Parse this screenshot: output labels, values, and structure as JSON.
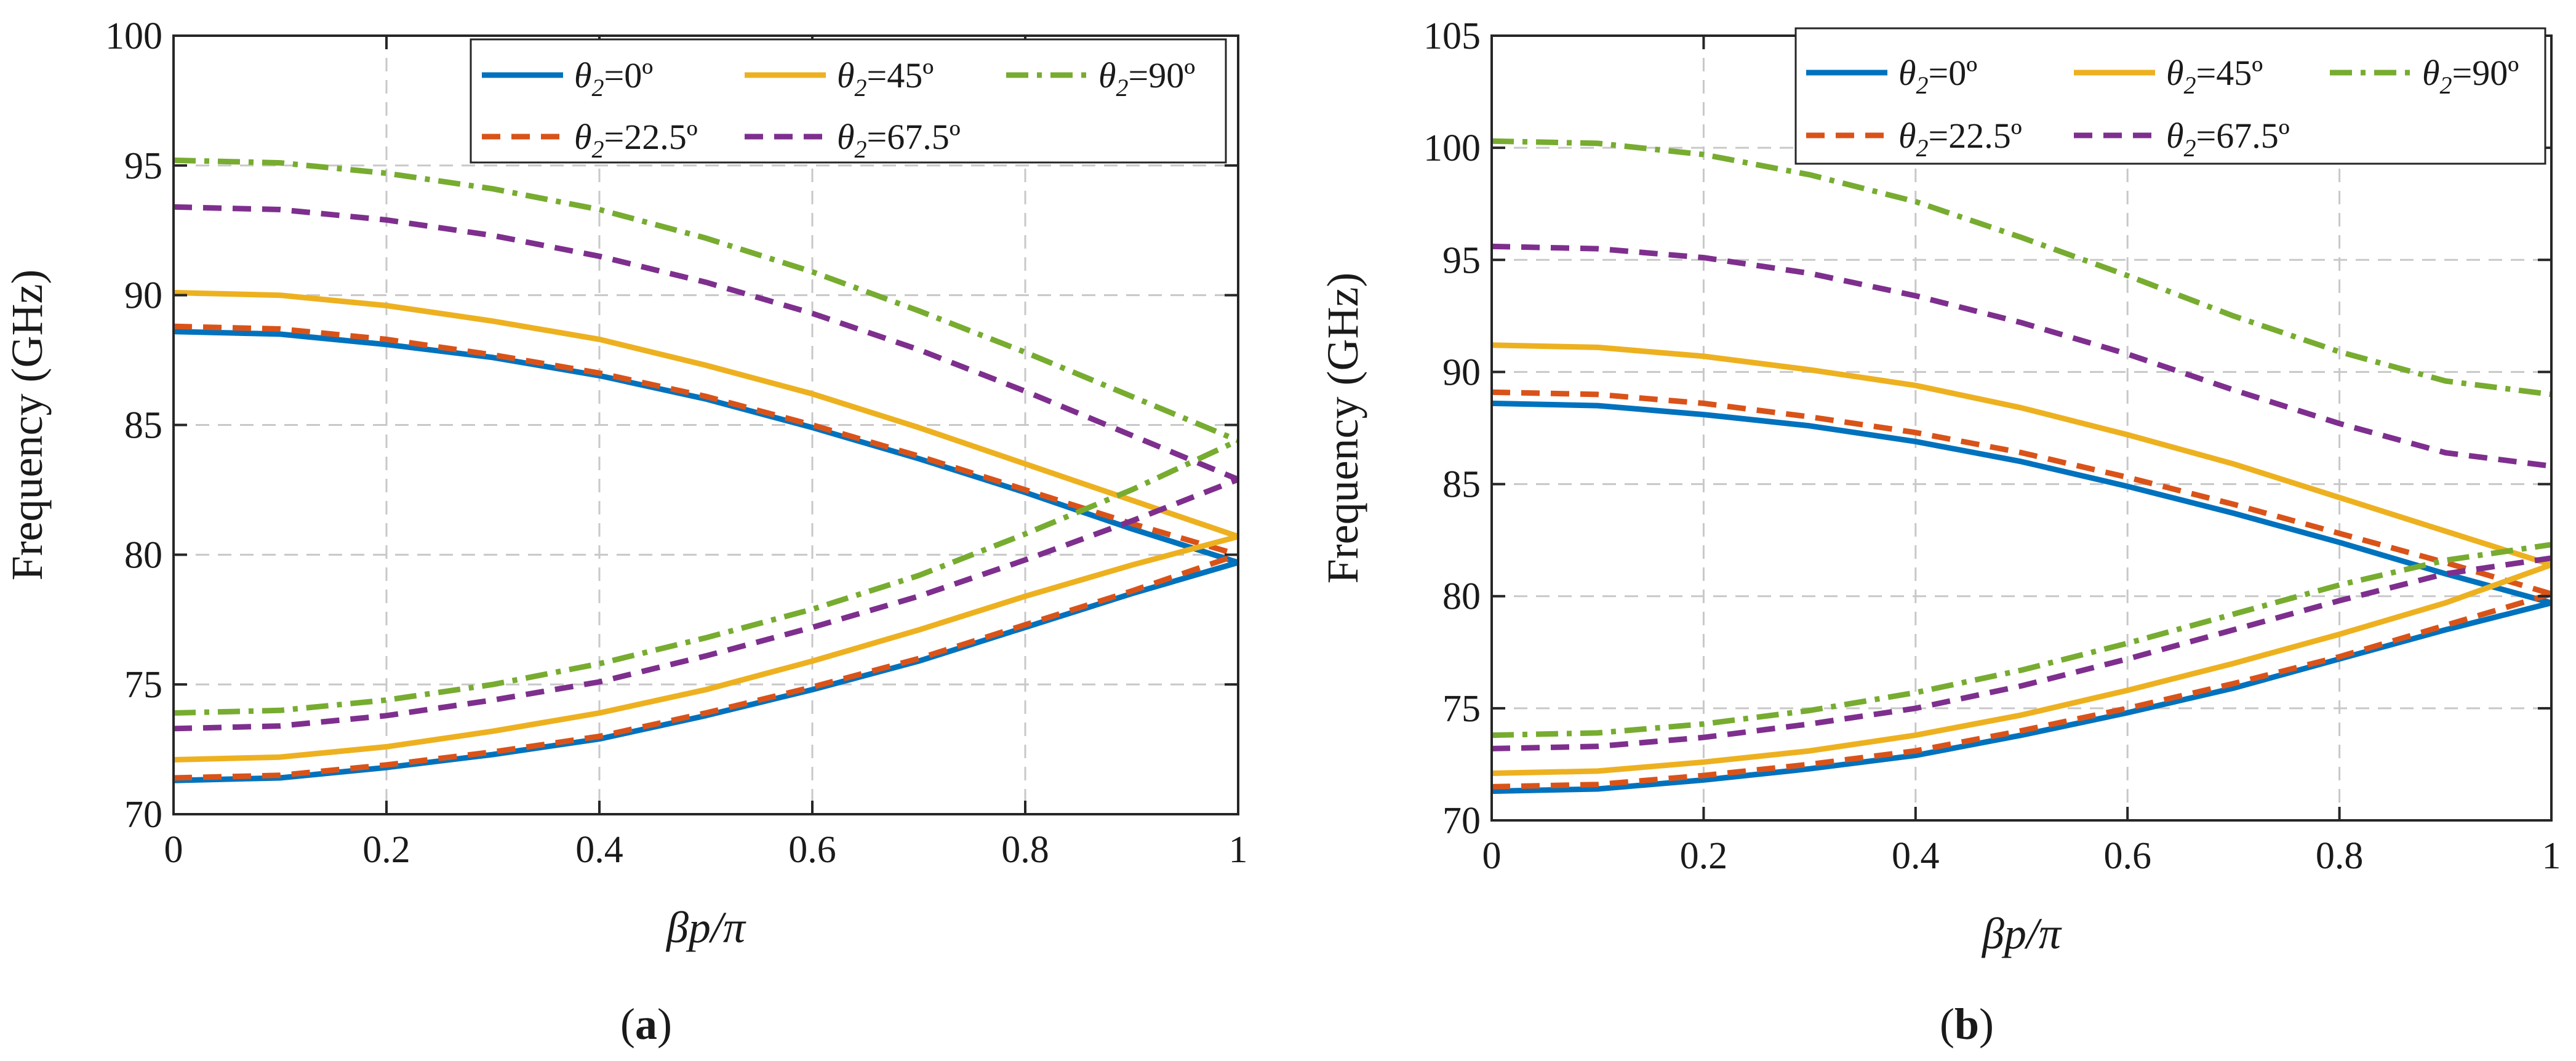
{
  "chart_data": [
    {
      "type": "line",
      "panel": "a",
      "caption": {
        "open": "(",
        "letter": "a",
        "close": ")"
      },
      "xlabel": "βp/π",
      "ylabel": "Frequency (GHz)",
      "xlim": [
        0,
        1
      ],
      "ylim": [
        70,
        100
      ],
      "xticks": [
        0,
        0.2,
        0.4,
        0.6,
        0.8,
        1
      ],
      "xtick_labels": [
        "0",
        "0.2",
        "0.4",
        "0.6",
        "0.8",
        "1"
      ],
      "yticks": [
        70,
        75,
        80,
        85,
        90,
        95,
        100
      ],
      "ytick_labels": [
        "70",
        "75",
        "80",
        "85",
        "90",
        "95",
        "100"
      ],
      "grid": true,
      "legend_position": "top-right",
      "x": [
        0,
        0.1,
        0.2,
        0.3,
        0.4,
        0.5,
        0.6,
        0.7,
        0.8,
        0.9,
        1.0
      ],
      "series": [
        {
          "name": "θ2=0º",
          "symbol": "θ",
          "sub": "2",
          "rest": "=0º",
          "color": "#0072BD",
          "dash": "solid",
          "upper": [
            88.6,
            88.5,
            88.1,
            87.6,
            86.9,
            86.0,
            84.9,
            83.7,
            82.4,
            81.0,
            79.7
          ],
          "lower": [
            71.3,
            71.4,
            71.8,
            72.3,
            72.9,
            73.8,
            74.8,
            75.9,
            77.2,
            78.5,
            79.7
          ]
        },
        {
          "name": "θ2=22.5º",
          "symbol": "θ",
          "sub": "2",
          "rest": "=22.5º",
          "color": "#D95319",
          "dash": "dashed",
          "upper": [
            88.8,
            88.7,
            88.3,
            87.7,
            87.0,
            86.1,
            85.0,
            83.8,
            82.5,
            81.2,
            80.0
          ],
          "lower": [
            71.4,
            71.5,
            71.9,
            72.4,
            73.0,
            73.9,
            74.9,
            76.0,
            77.3,
            78.6,
            80.0
          ]
        },
        {
          "name": "θ2=45º",
          "symbol": "θ",
          "sub": "2",
          "rest": "=45º",
          "color": "#EDB120",
          "dash": "solid",
          "upper": [
            90.1,
            90.0,
            89.6,
            89.0,
            88.3,
            87.3,
            86.2,
            84.9,
            83.5,
            82.1,
            80.7
          ],
          "lower": [
            72.1,
            72.2,
            72.6,
            73.2,
            73.9,
            74.8,
            75.9,
            77.1,
            78.4,
            79.6,
            80.7
          ]
        },
        {
          "name": "θ2=67.5º",
          "symbol": "θ",
          "sub": "2",
          "rest": "=67.5º",
          "color": "#7E2F8E",
          "dash": "dashed",
          "upper": [
            93.4,
            93.3,
            92.9,
            92.3,
            91.5,
            90.5,
            89.3,
            87.9,
            86.3,
            84.6,
            82.9
          ],
          "lower": [
            73.3,
            73.4,
            73.8,
            74.4,
            75.1,
            76.1,
            77.2,
            78.4,
            79.8,
            81.3,
            82.9
          ]
        },
        {
          "name": "θ2=90º",
          "symbol": "θ",
          "sub": "2",
          "rest": "=90º",
          "color": "#77AC30",
          "dash": "dashdot",
          "upper": [
            95.2,
            95.1,
            94.7,
            94.1,
            93.3,
            92.2,
            90.9,
            89.4,
            87.8,
            86.1,
            84.4
          ],
          "lower": [
            73.9,
            74.0,
            74.4,
            75.0,
            75.8,
            76.8,
            77.9,
            79.2,
            80.8,
            82.5,
            84.4
          ]
        }
      ]
    },
    {
      "type": "line",
      "panel": "b",
      "caption": {
        "open": "(",
        "letter": "b",
        "close": ")"
      },
      "xlabel": "βp/π",
      "ylabel": "Frequency (GHz)",
      "xlim": [
        0,
        1
      ],
      "ylim": [
        70,
        105
      ],
      "xticks": [
        0,
        0.2,
        0.4,
        0.6,
        0.8,
        1
      ],
      "xtick_labels": [
        "0",
        "0.2",
        "0.4",
        "0.6",
        "0.8",
        "1"
      ],
      "yticks": [
        70,
        75,
        80,
        85,
        90,
        95,
        100,
        105
      ],
      "ytick_labels": [
        "70",
        "75",
        "80",
        "85",
        "90",
        "95",
        "100",
        "105"
      ],
      "grid": true,
      "legend_position": "top",
      "x": [
        0,
        0.1,
        0.2,
        0.3,
        0.4,
        0.5,
        0.6,
        0.7,
        0.8,
        0.9,
        1.0
      ],
      "series": [
        {
          "name": "θ2=0º",
          "symbol": "θ",
          "sub": "2",
          "rest": "=0º",
          "color": "#0072BD",
          "dash": "solid",
          "upper": [
            88.6,
            88.5,
            88.1,
            87.6,
            86.9,
            86.0,
            84.9,
            83.7,
            82.4,
            81.0,
            79.7
          ],
          "lower": [
            71.3,
            71.4,
            71.8,
            72.3,
            72.9,
            73.8,
            74.8,
            75.9,
            77.2,
            78.5,
            79.7
          ]
        },
        {
          "name": "θ2=22.5º",
          "symbol": "θ",
          "sub": "2",
          "rest": "=22.5º",
          "color": "#D95319",
          "dash": "dashed",
          "upper": [
            89.1,
            89.0,
            88.6,
            88.0,
            87.3,
            86.4,
            85.3,
            84.1,
            82.8,
            81.5,
            80.1
          ],
          "lower": [
            71.5,
            71.6,
            72.0,
            72.5,
            73.1,
            74.0,
            75.0,
            76.1,
            77.3,
            78.7,
            80.1
          ]
        },
        {
          "name": "θ2=45º",
          "symbol": "θ",
          "sub": "2",
          "rest": "=45º",
          "color": "#EDB120",
          "dash": "solid",
          "upper": [
            91.2,
            91.1,
            90.7,
            90.1,
            89.4,
            88.4,
            87.2,
            85.9,
            84.4,
            82.9,
            81.4
          ],
          "lower": [
            72.1,
            72.2,
            72.6,
            73.1,
            73.8,
            74.7,
            75.8,
            77.0,
            78.3,
            79.7,
            81.4
          ]
        },
        {
          "name": "θ2=67.5º",
          "symbol": "θ",
          "sub": "2",
          "rest": "=67.5º",
          "color": "#7E2F8E",
          "dash": "dashed",
          "upper": [
            95.6,
            95.5,
            95.1,
            94.4,
            93.4,
            92.2,
            90.8,
            89.2,
            87.7,
            86.4,
            85.8
          ],
          "lower": [
            73.2,
            73.3,
            73.7,
            74.3,
            75.0,
            76.0,
            77.2,
            78.5,
            79.8,
            81.0,
            81.7
          ]
        },
        {
          "name": "θ2=90º",
          "symbol": "θ",
          "sub": "2",
          "rest": "=90º",
          "color": "#77AC30",
          "dash": "dashdot",
          "upper": [
            100.3,
            100.2,
            99.7,
            98.8,
            97.6,
            96.0,
            94.3,
            92.5,
            90.9,
            89.6,
            89.0
          ],
          "lower": [
            73.8,
            73.9,
            74.3,
            74.9,
            75.7,
            76.7,
            77.9,
            79.2,
            80.5,
            81.6,
            82.3
          ]
        }
      ]
    }
  ]
}
